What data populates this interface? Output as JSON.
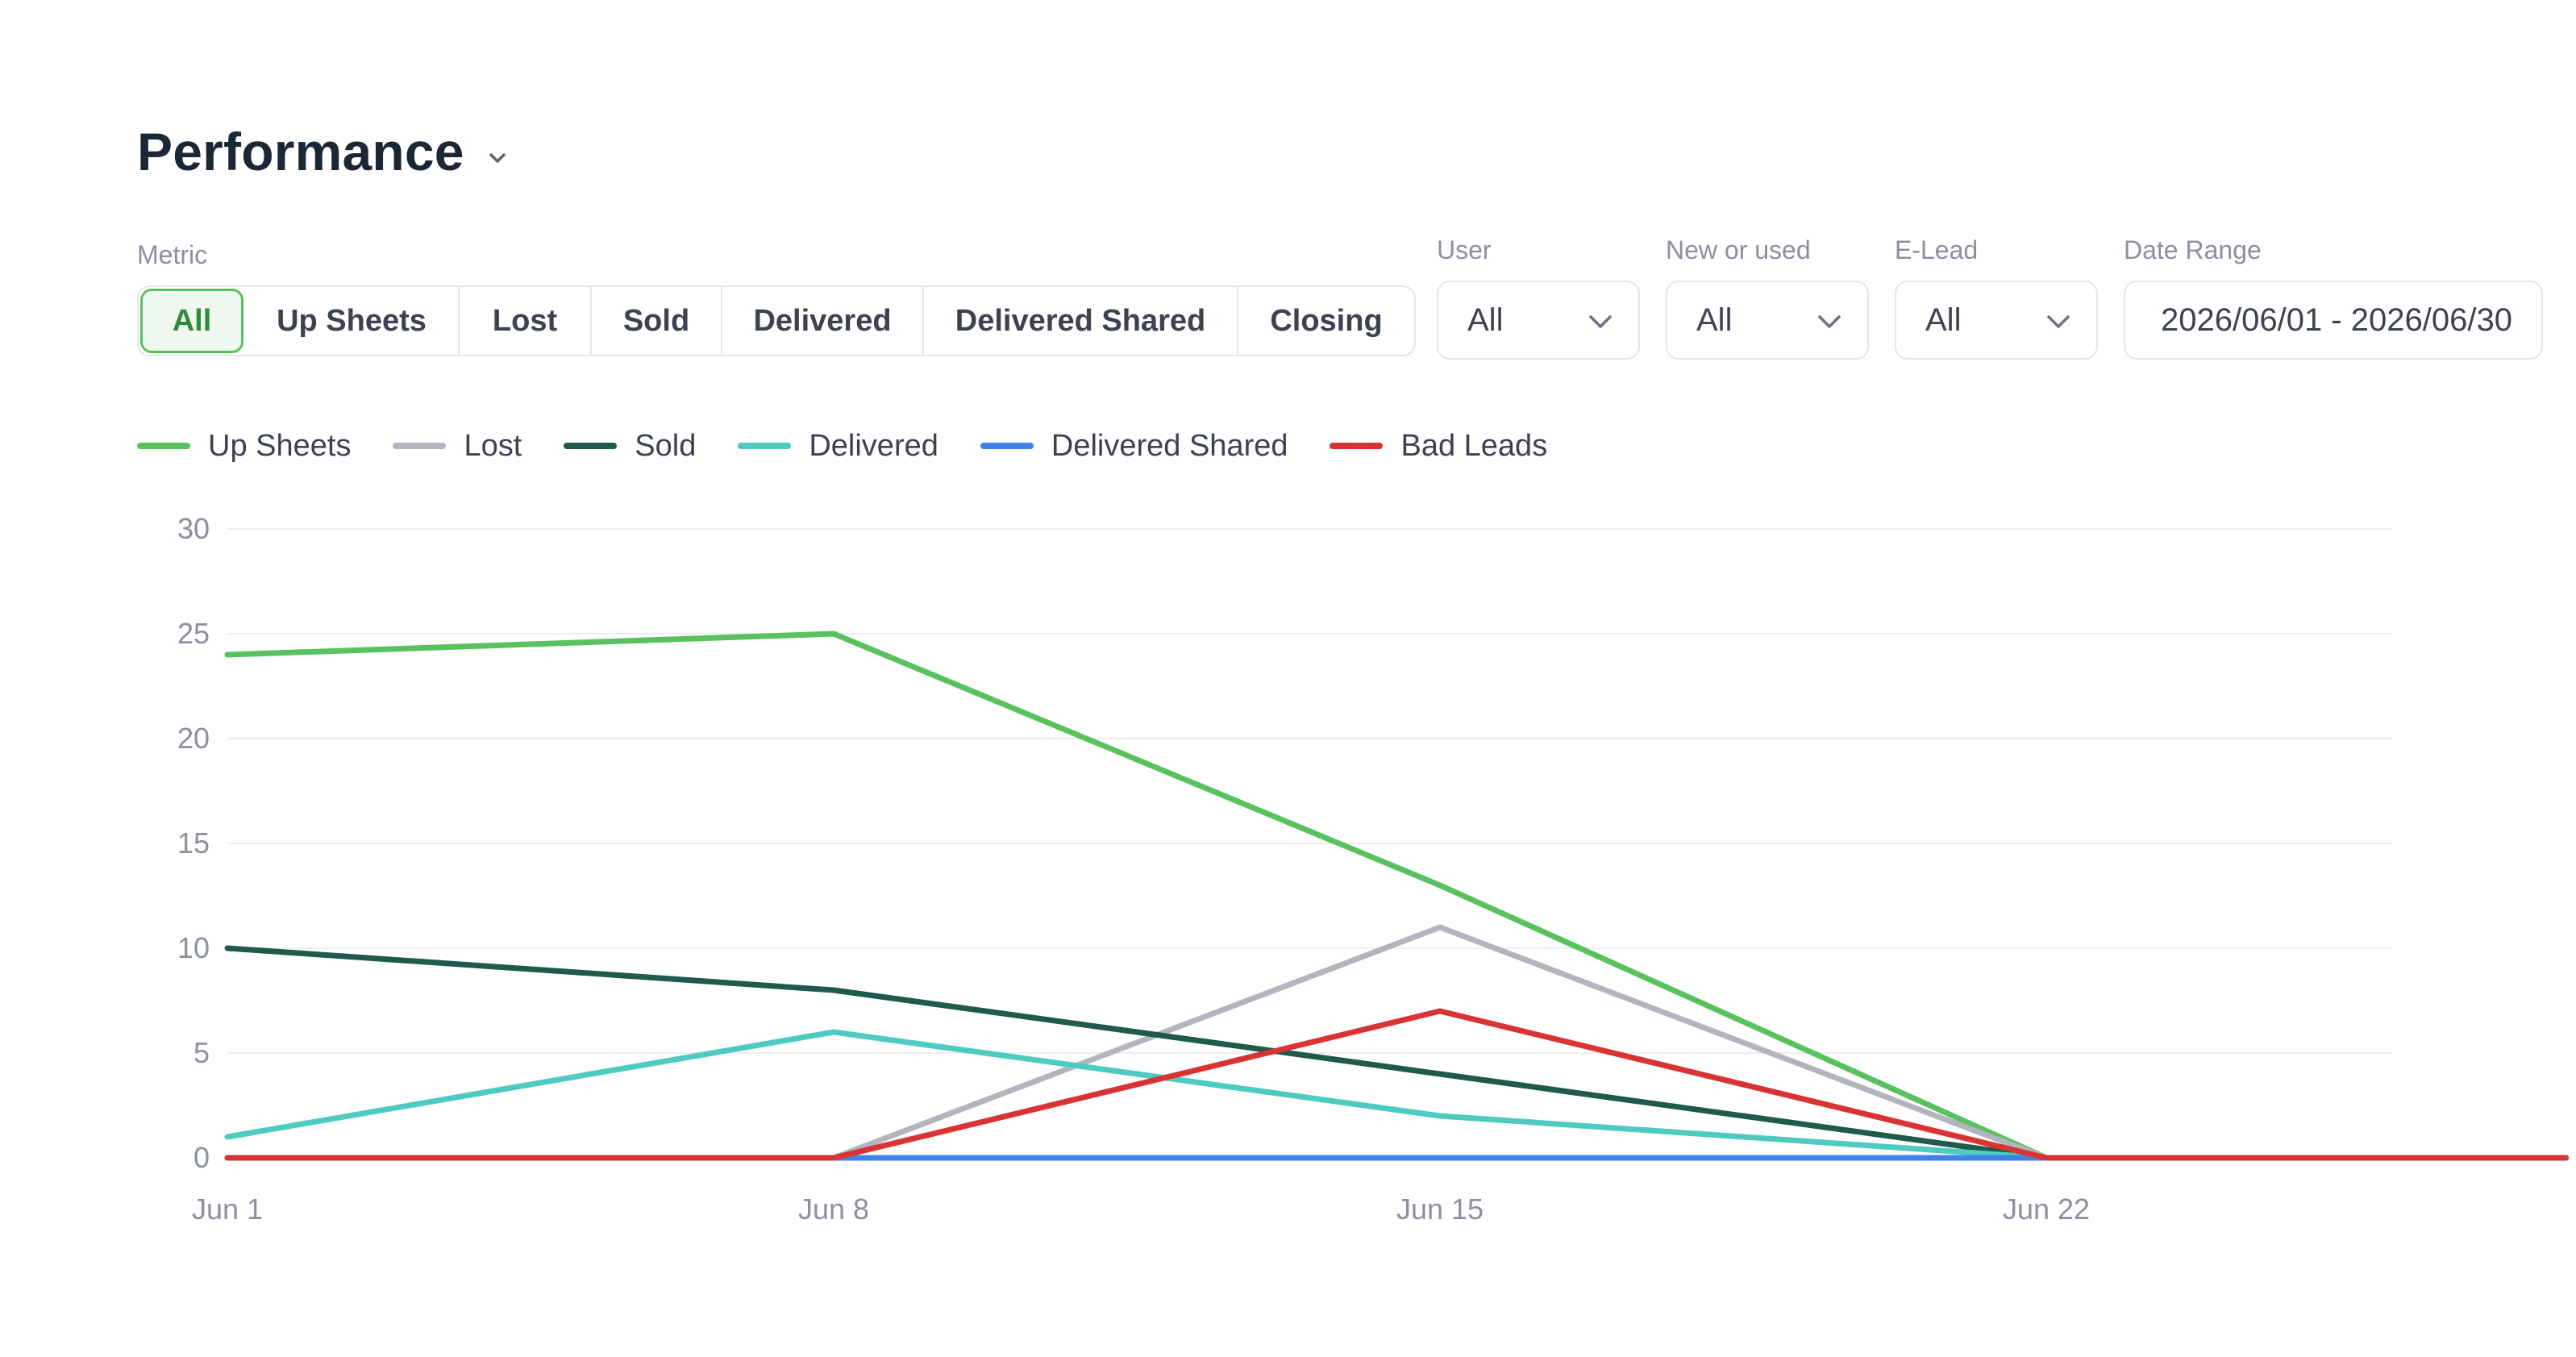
{
  "header": {
    "title": "Performance"
  },
  "filters": {
    "metric": {
      "label": "Metric",
      "options": [
        "All",
        "Up Sheets",
        "Lost",
        "Sold",
        "Delivered",
        "Delivered Shared",
        "Closing"
      ],
      "selected": "All"
    },
    "user": {
      "label": "User",
      "value": "All"
    },
    "new_or_used": {
      "label": "New or used",
      "value": "All"
    },
    "e_lead": {
      "label": "E-Lead",
      "value": "All"
    },
    "date_range": {
      "label": "Date Range",
      "value": "2026/06/01 - 2026/06/30"
    }
  },
  "colors": {
    "accent": "#5ac15f"
  },
  "chart_data": {
    "type": "line",
    "x": [
      "2026-06-01",
      "2026-06-08",
      "2026-06-15",
      "2026-06-22",
      "2026-06-28"
    ],
    "x_tick_labels": [
      "Jun 1",
      "Jun 8",
      "Jun 15",
      "Jun 22"
    ],
    "y_ticks": [
      0,
      5,
      10,
      15,
      20,
      25,
      30
    ],
    "ylim": [
      0,
      30
    ],
    "grid": true,
    "legend_position": "top-left",
    "series": [
      {
        "name": "Up Sheets",
        "color": "#5ac15f",
        "values": [
          24,
          25,
          13,
          0,
          0
        ]
      },
      {
        "name": "Lost",
        "color": "#b1b5bd",
        "values": [
          0,
          0,
          11,
          0,
          0
        ]
      },
      {
        "name": "Sold",
        "color": "#1f5a4a",
        "values": [
          10,
          8,
          4,
          0,
          0
        ]
      },
      {
        "name": "Delivered",
        "color": "#4ecbc0",
        "values": [
          1,
          6,
          2,
          0,
          0
        ]
      },
      {
        "name": "Delivered Shared",
        "color": "#3f82ea",
        "values": [
          0,
          0,
          0,
          0,
          0
        ]
      },
      {
        "name": "Bad Leads",
        "color": "#d93333",
        "values": [
          0,
          0,
          7,
          0,
          0
        ]
      }
    ]
  }
}
